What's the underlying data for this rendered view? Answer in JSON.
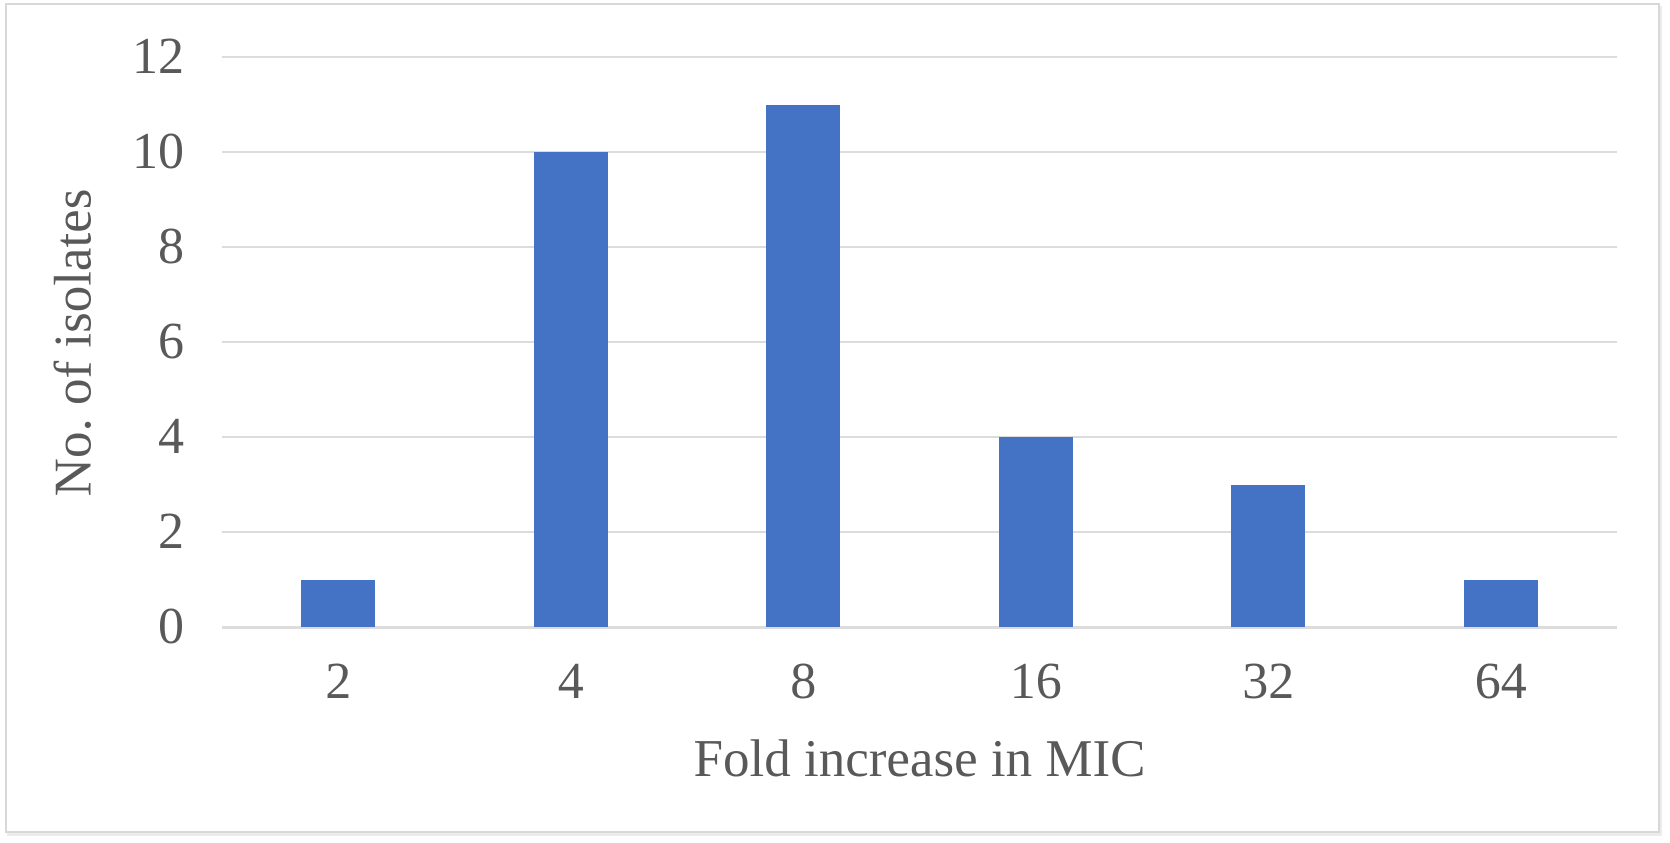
{
  "chart_data": {
    "type": "bar",
    "categories": [
      "2",
      "4",
      "8",
      "16",
      "32",
      "64"
    ],
    "values": [
      1,
      10,
      11,
      4,
      3,
      1
    ],
    "xlabel": "Fold increase in MIC",
    "ylabel": "No. of isolates",
    "ylim": [
      0,
      12
    ],
    "yticks": [
      0,
      2,
      4,
      6,
      8,
      10,
      12
    ],
    "grid": "horizontal",
    "legend": "none",
    "colors": {
      "bar": "#4472C4",
      "gridline": "#dcdcdc",
      "axis_text": "#595959",
      "frame_border": "#d8d8d8"
    }
  }
}
